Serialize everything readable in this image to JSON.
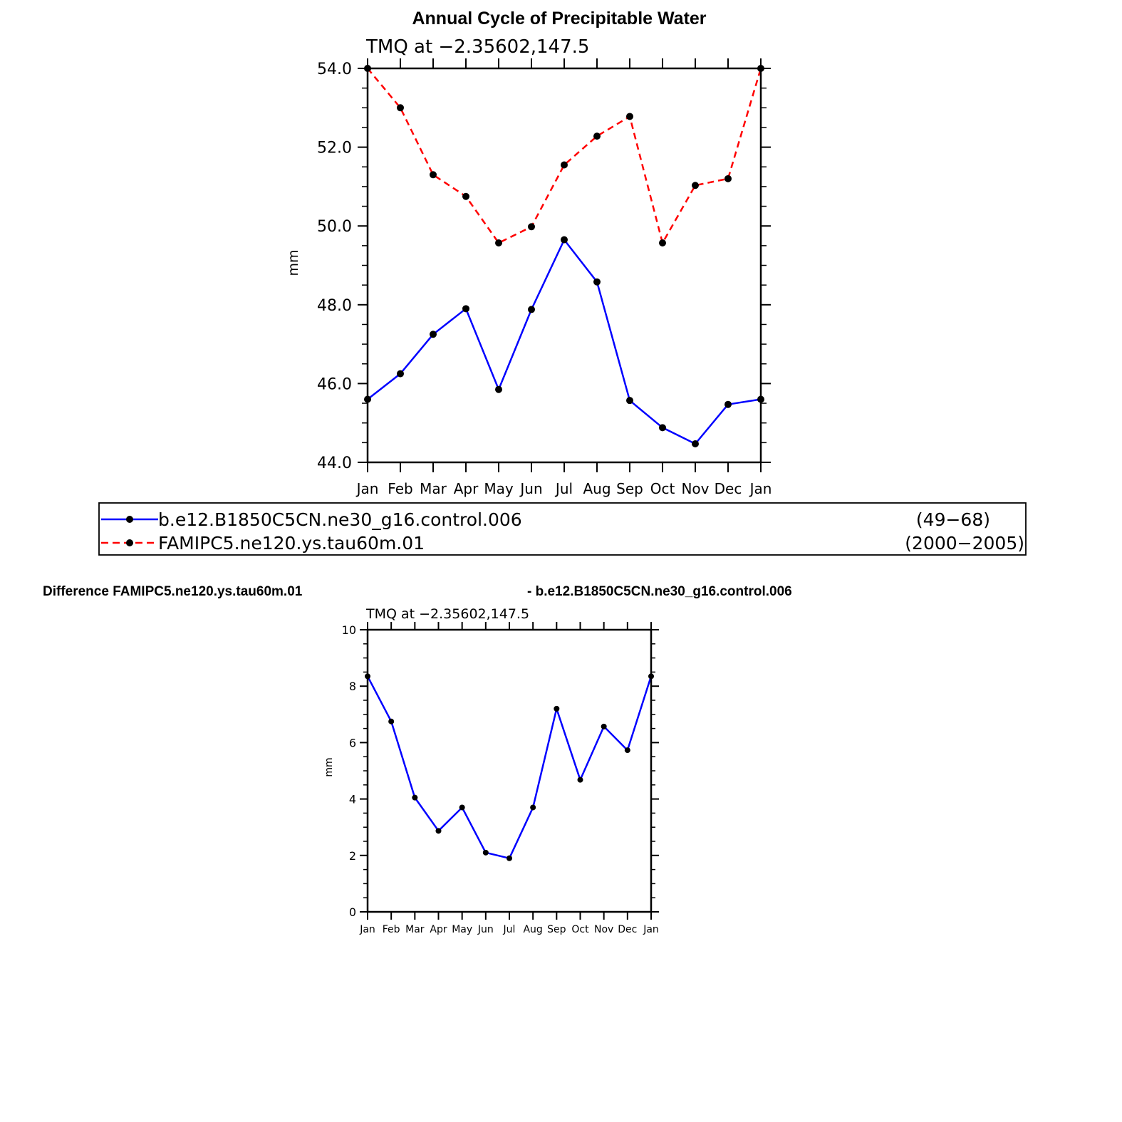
{
  "chart_data": [
    {
      "type": "line",
      "title": "Annual Cycle of Precipitable Water",
      "subtitle": "TMQ  at  −2.35602,147.5",
      "ylabel": "mm",
      "xlabel": "",
      "categories": [
        "Jan",
        "Feb",
        "Mar",
        "Apr",
        "May",
        "Jun",
        "Jul",
        "Aug",
        "Sep",
        "Oct",
        "Nov",
        "Dec",
        "Jan"
      ],
      "ylim": [
        44.0,
        54.0
      ],
      "yticks": [
        44.0,
        46.0,
        48.0,
        50.0,
        52.0,
        54.0
      ],
      "ytick_labels": [
        "44.0",
        "46.0",
        "48.0",
        "50.0",
        "52.0",
        "54.0"
      ],
      "grid": false,
      "legend": {
        "placement": "below",
        "entries": [
          {
            "label": "b.e12.B1850C5CN.ne30_g16.control.006",
            "years": "(49−68)",
            "color": "#0000ff",
            "style": "solid"
          },
          {
            "label": "FAMIPC5.ne120.ys.tau60m.01",
            "years": "(2000−2005)",
            "color": "#ff0000",
            "style": "dashed"
          }
        ]
      },
      "series": [
        {
          "name": "b.e12.B1850C5CN.ne30_g16.control.006",
          "color": "#0000ff",
          "style": "solid",
          "values": [
            45.6,
            46.25,
            47.25,
            47.9,
            45.85,
            47.88,
            49.65,
            48.58,
            45.57,
            44.88,
            44.47,
            45.47,
            45.6
          ]
        },
        {
          "name": "FAMIPC5.ne120.ys.tau60m.01",
          "color": "#ff0000",
          "style": "dashed",
          "values": [
            54.0,
            53.0,
            51.3,
            50.75,
            49.57,
            49.98,
            51.55,
            52.28,
            52.78,
            49.57,
            51.03,
            51.2,
            54.0
          ]
        }
      ]
    },
    {
      "type": "line",
      "title": "Difference FAMIPC5.ne120.ys.tau60m.01",
      "title_right": "- b.e12.B1850C5CN.ne30_g16.control.006",
      "subtitle": "TMQ  at  −2.35602,147.5",
      "ylabel": "mm",
      "xlabel": "",
      "categories": [
        "Jan",
        "Feb",
        "Mar",
        "Apr",
        "May",
        "Jun",
        "Jul",
        "Aug",
        "Sep",
        "Oct",
        "Nov",
        "Dec",
        "Jan"
      ],
      "ylim": [
        0,
        10
      ],
      "yticks": [
        0,
        2,
        4,
        6,
        8,
        10
      ],
      "ytick_labels": [
        "0",
        "2",
        "4",
        "6",
        "8",
        "10"
      ],
      "grid": false,
      "series": [
        {
          "name": "Difference",
          "color": "#0000ff",
          "style": "solid",
          "values": [
            8.35,
            6.75,
            4.05,
            2.87,
            3.7,
            2.1,
            1.9,
            3.7,
            7.2,
            4.68,
            6.57,
            5.73,
            8.35
          ]
        }
      ]
    }
  ]
}
